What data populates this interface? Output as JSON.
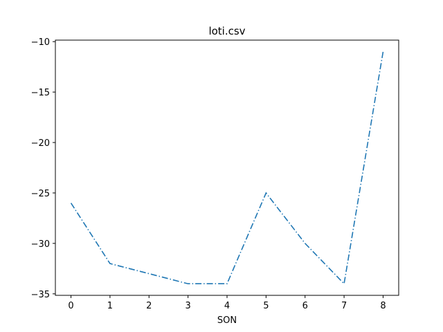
{
  "chart_data": {
    "type": "line",
    "title": "loti.csv",
    "xlabel": "SON",
    "ylabel": "",
    "x": [
      0,
      1,
      2,
      3,
      4,
      5,
      6,
      7,
      8
    ],
    "series": [
      {
        "values": [
          -26,
          -32,
          -33,
          -34,
          -34,
          -25,
          -30,
          -34,
          -11
        ],
        "color": "#1f77b4",
        "line_style": "dash-dot"
      }
    ],
    "xlim": [
      -0.4,
      8.4
    ],
    "ylim": [
      -35.15,
      -9.85
    ],
    "x_ticks": [
      0,
      1,
      2,
      3,
      4,
      5,
      6,
      7,
      8
    ],
    "y_ticks": [
      -35,
      -30,
      -25,
      -20,
      -15,
      -10
    ],
    "y_tick_labels": [
      "−35",
      "−30",
      "−25",
      "−20",
      "−15",
      "−10"
    ],
    "grid": false,
    "legend": "none"
  }
}
